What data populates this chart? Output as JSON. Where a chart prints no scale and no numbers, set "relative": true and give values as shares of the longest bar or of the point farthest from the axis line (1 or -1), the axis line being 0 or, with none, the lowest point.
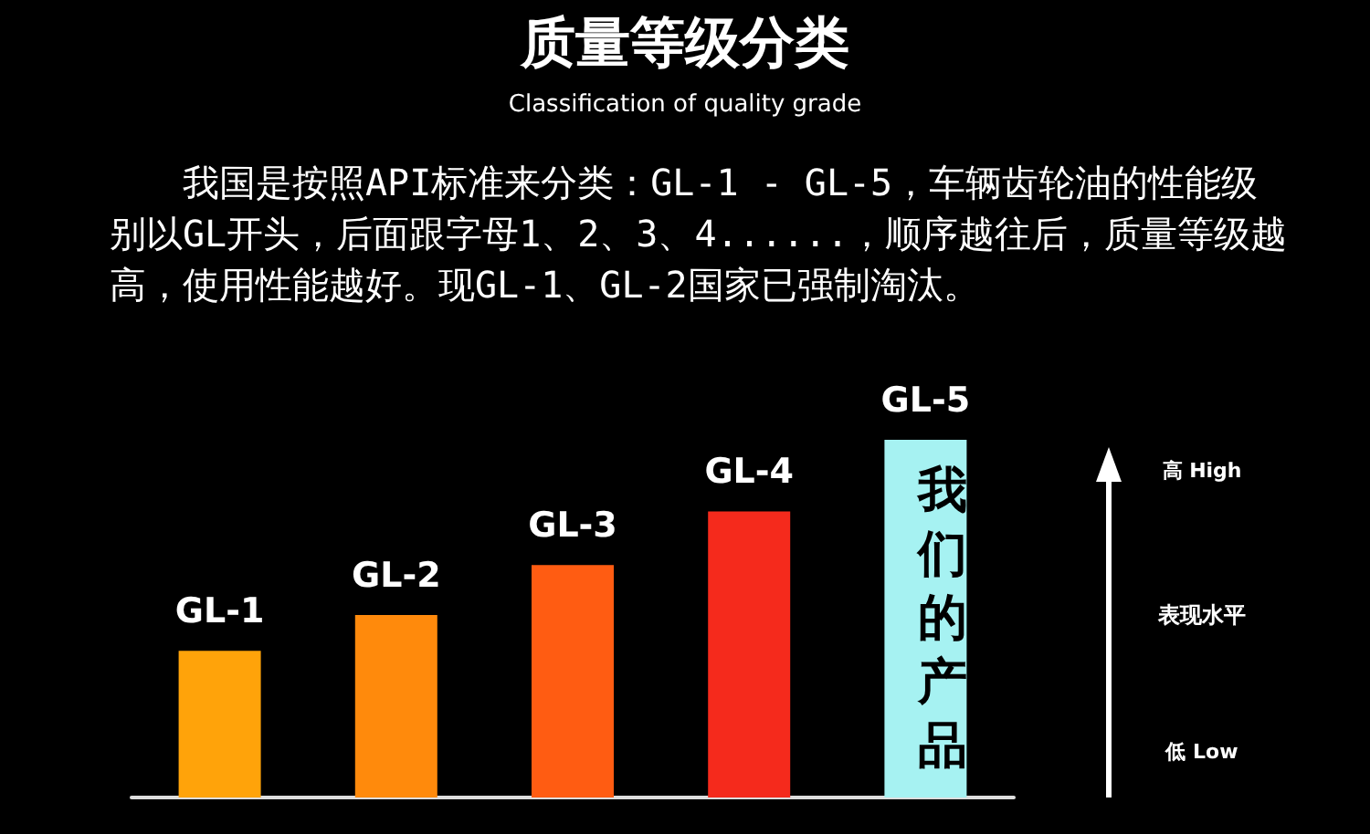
{
  "chart_data": {
    "type": "bar",
    "title": "质量等级分类",
    "subtitle": "Classification of quality grade",
    "annotations": [
      "我国是按照API标准来分类：GL-1 - GL-5，车辆齿轮油的性能级别以GL开头，后面跟字母1、2、3、4......，顺序越往后，质量等级越高，使用性能越好。现GL-1、GL-2国家已强制淘汰。",
      "高 High",
      "表现水平",
      "低 Low",
      "我们的产品"
    ],
    "categories": [
      "GL-1",
      "GL-2",
      "GL-3",
      "GL-4",
      "GL-5"
    ],
    "values": [
      0.41,
      0.51,
      0.65,
      0.8,
      1
    ],
    "colors": [
      "#ffa30a",
      "#ff8a0c",
      "#ff5c12",
      "#f52a1c",
      "#a6f2f2"
    ],
    "relative": true,
    "grid": false
  }
}
